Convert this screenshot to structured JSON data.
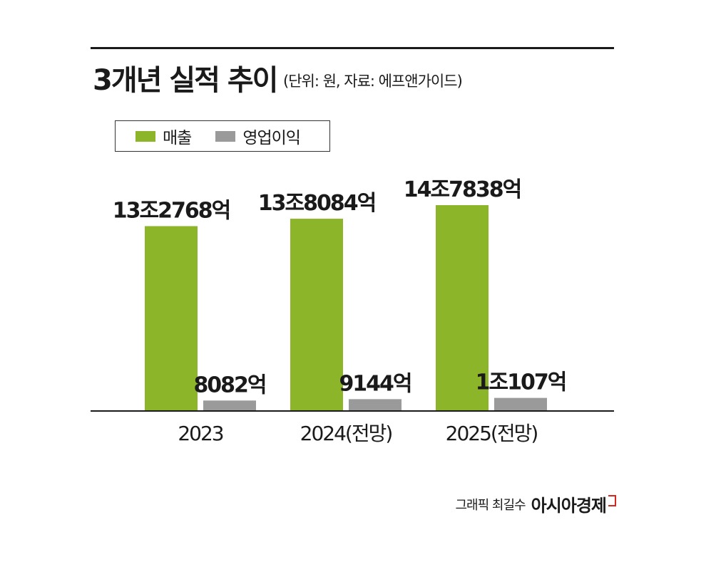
{
  "title": "3개년 실적 추이",
  "subtitle": "(단위: 원, 자료: 에프앤가이드)",
  "legend": [
    {
      "label": "매출",
      "color": "#8db52a"
    },
    {
      "label": "영업이익",
      "color": "#9a9a9a"
    }
  ],
  "credit": {
    "text": "그래픽 최길수",
    "brand": "아시아경제"
  },
  "chart_data": {
    "type": "bar",
    "categories": [
      "2023",
      "2024(전망)",
      "2025(전망)"
    ],
    "series": [
      {
        "name": "매출",
        "values": [
          132768,
          138084,
          147838
        ],
        "labels": [
          "13조2768억",
          "13조8084억",
          "14조7838억"
        ],
        "color": "#8db52a"
      },
      {
        "name": "영업이익",
        "values": [
          8082,
          9144,
          10107
        ],
        "labels": [
          "8082억",
          "9144억",
          "1조107억"
        ],
        "color": "#9a9a9a"
      }
    ],
    "unit": "억원",
    "grid": false,
    "legend_position": "top-left"
  }
}
